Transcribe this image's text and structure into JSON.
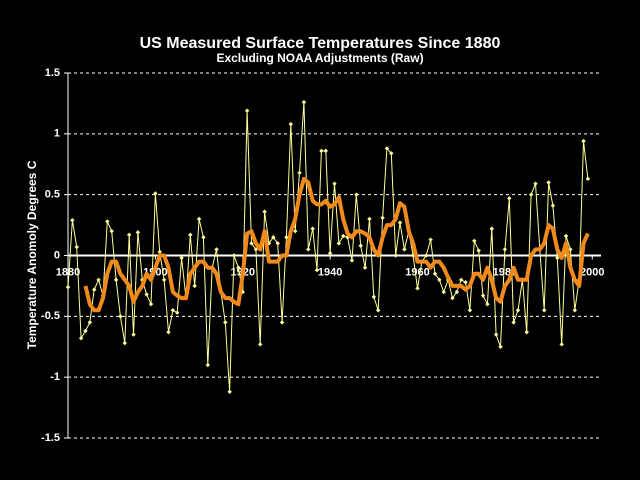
{
  "chart_data": {
    "type": "line",
    "title": "US Measured Surface Temperatures Since 1880",
    "subtitle": "Excluding NOAA Adjustments (Raw)",
    "y_label": "Temperature Anomoly Degrees C",
    "x": [
      1880,
      1881,
      1882,
      1883,
      1884,
      1885,
      1886,
      1887,
      1888,
      1889,
      1890,
      1891,
      1892,
      1893,
      1894,
      1895,
      1896,
      1897,
      1898,
      1899,
      1900,
      1901,
      1902,
      1903,
      1904,
      1905,
      1906,
      1907,
      1908,
      1909,
      1910,
      1911,
      1912,
      1913,
      1914,
      1915,
      1916,
      1917,
      1918,
      1919,
      1920,
      1921,
      1922,
      1923,
      1924,
      1925,
      1926,
      1927,
      1928,
      1929,
      1930,
      1931,
      1932,
      1933,
      1934,
      1935,
      1936,
      1937,
      1938,
      1939,
      1940,
      1941,
      1942,
      1943,
      1944,
      1945,
      1946,
      1947,
      1948,
      1949,
      1950,
      1951,
      1952,
      1953,
      1954,
      1955,
      1956,
      1957,
      1958,
      1959,
      1960,
      1961,
      1962,
      1963,
      1964,
      1965,
      1966,
      1967,
      1968,
      1969,
      1970,
      1971,
      1972,
      1973,
      1974,
      1975,
      1976,
      1977,
      1978,
      1979,
      1980,
      1981,
      1982,
      1983,
      1984,
      1985,
      1986,
      1987,
      1988,
      1989,
      1990,
      1991,
      1992,
      1993,
      1994,
      1995,
      1996,
      1997,
      1998,
      1999
    ],
    "series": [
      {
        "color": "#ffff99",
        "markers": true,
        "values": [
          -0.26,
          0.29,
          0.07,
          -0.68,
          -0.62,
          -0.55,
          -0.28,
          -0.2,
          -0.33,
          0.28,
          0.2,
          -0.2,
          -0.5,
          -0.72,
          0.17,
          -0.65,
          0.19,
          -0.2,
          -0.32,
          -0.4,
          0.51,
          0.03,
          -0.2,
          -0.63,
          -0.45,
          -0.47,
          -0.02,
          -0.35,
          0.17,
          -0.25,
          0.3,
          0.15,
          -0.9,
          -0.1,
          0.05,
          -0.3,
          -0.55,
          -1.12,
          0.0,
          -0.1,
          -0.3,
          1.19,
          0.1,
          0.05,
          -0.73,
          0.36,
          0.1,
          0.15,
          0.1,
          -0.55,
          0.15,
          1.08,
          0.2,
          0.68,
          1.26,
          0.05,
          0.22,
          -0.12,
          0.86,
          0.86,
          0.02,
          0.59,
          0.1,
          0.16,
          0.15,
          -0.04,
          0.5,
          0.08,
          -0.1,
          0.3,
          -0.34,
          -0.45,
          0.31,
          0.88,
          0.84,
          0.0,
          0.27,
          0.05,
          0.2,
          0.0,
          -0.27,
          -0.05,
          0.0,
          0.13,
          -0.15,
          -0.2,
          -0.3,
          -0.2,
          -0.35,
          -0.3,
          -0.2,
          -0.22,
          -0.45,
          0.12,
          0.04,
          -0.33,
          -0.4,
          0.22,
          -0.65,
          -0.75,
          0.05,
          0.47,
          -0.55,
          -0.45,
          -0.2,
          -0.63,
          0.5,
          0.59,
          0.05,
          -0.45,
          0.6,
          0.41,
          -0.02,
          -0.73,
          0.16,
          0.05,
          -0.45,
          -0.2,
          0.94,
          0.63
        ]
      },
      {
        "color": "#f08a1c",
        "markers": false,
        "values": [
          null,
          null,
          null,
          null,
          -0.25,
          -0.4,
          -0.45,
          -0.45,
          -0.35,
          -0.15,
          -0.05,
          -0.05,
          -0.15,
          -0.2,
          -0.25,
          -0.38,
          -0.3,
          -0.25,
          -0.15,
          -0.2,
          -0.1,
          0.0,
          0.0,
          -0.1,
          -0.3,
          -0.33,
          -0.35,
          -0.35,
          -0.15,
          -0.1,
          -0.05,
          -0.05,
          -0.1,
          -0.1,
          -0.15,
          -0.3,
          -0.35,
          -0.35,
          -0.38,
          -0.4,
          -0.15,
          0.18,
          0.2,
          0.1,
          0.05,
          0.2,
          -0.05,
          -0.05,
          -0.05,
          0.0,
          0.0,
          0.2,
          0.3,
          0.5,
          0.63,
          0.6,
          0.45,
          0.42,
          0.42,
          0.45,
          0.4,
          0.42,
          0.48,
          0.3,
          0.18,
          0.15,
          0.2,
          0.2,
          0.18,
          0.15,
          0.05,
          0.0,
          0.15,
          0.25,
          0.25,
          0.3,
          0.43,
          0.4,
          0.2,
          0.1,
          -0.05,
          -0.05,
          -0.05,
          -0.1,
          -0.05,
          -0.05,
          -0.1,
          -0.18,
          -0.25,
          -0.25,
          -0.25,
          -0.28,
          -0.25,
          -0.15,
          -0.15,
          -0.2,
          -0.1,
          -0.2,
          -0.35,
          -0.38,
          -0.25,
          -0.2,
          -0.1,
          -0.2,
          -0.2,
          -0.2,
          0.0,
          0.05,
          0.05,
          0.1,
          0.25,
          0.22,
          0.05,
          -0.02,
          0.1,
          -0.1,
          -0.2,
          -0.25,
          0.1,
          0.18
        ]
      }
    ],
    "xlim": [
      1880,
      2002
    ],
    "xticks": [
      1880,
      1900,
      1920,
      1940,
      1960,
      1980,
      2000
    ],
    "ylim": [
      -1.5,
      1.5
    ],
    "yticks": [
      1.5,
      1,
      0.5,
      0,
      -0.5,
      -1,
      -1.5
    ],
    "grid": true
  }
}
